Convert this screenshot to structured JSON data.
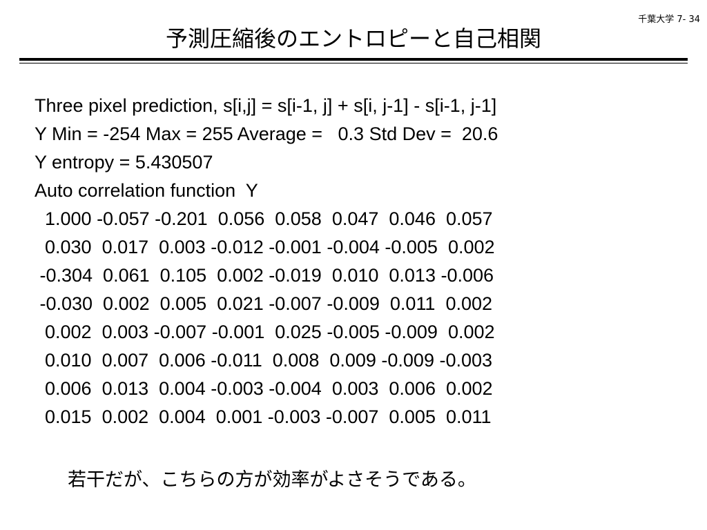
{
  "slide": {
    "page_number": "千葉大学 7- 34",
    "title": "予測圧縮後のエントロピーと自己相関",
    "description_line": "Three pixel prediction, s[i,j] = s[i-1, j] + s[i, j-1] - s[i-1, j-1]",
    "stats_line": "Y Min = -254 Max = 255 Average =   0.3 Std Dev =  20.6",
    "entropy_line": "Y entropy = 5.430507",
    "acf_heading": "Auto correlation function  Y",
    "acf_rows": [
      "  1.000 -0.057 -0.201  0.056  0.058  0.047  0.046  0.057",
      "  0.030  0.017  0.003 -0.012 -0.001 -0.004 -0.005  0.002",
      " -0.304  0.061  0.105  0.002 -0.019  0.010  0.013 -0.006",
      " -0.030  0.002  0.005  0.021 -0.007 -0.009  0.011  0.002",
      "  0.002  0.003 -0.007 -0.001  0.025 -0.005 -0.009  0.002",
      "  0.010  0.007  0.006 -0.011  0.008  0.009 -0.009 -0.003",
      "  0.006  0.013  0.004 -0.003 -0.004  0.003  0.006  0.002",
      "  0.015  0.002  0.004  0.001 -0.003 -0.007  0.005  0.011"
    ],
    "conclusion": "若干だが、こちらの方が効率がよさそうである。"
  }
}
